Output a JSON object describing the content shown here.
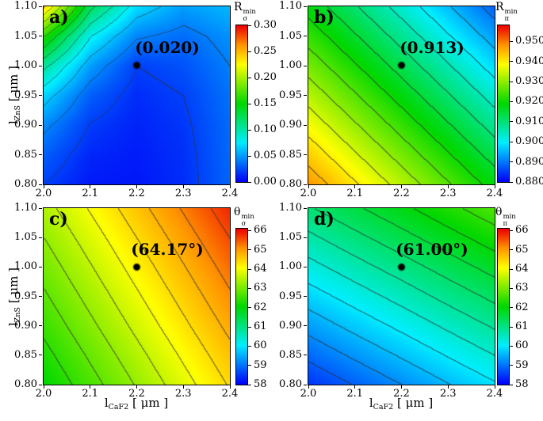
{
  "axes": {
    "x_label": {
      "base": "l",
      "sub": "CaF2",
      "unit": " [ μm ]",
      "text": "l_CaF2 [ μm ]"
    },
    "y_label": {
      "base": "l",
      "sub": "ZnS",
      "unit": " [ μm ]",
      "text": "l_ZnS [ μm ]"
    },
    "xlim": [
      2.0,
      2.4
    ],
    "ylim": [
      0.8,
      1.1
    ],
    "x_ticks": [
      {
        "value": 2.0,
        "label": "2.0"
      },
      {
        "value": 2.1,
        "label": "2.1"
      },
      {
        "value": 2.2,
        "label": "2.2"
      },
      {
        "value": 2.3,
        "label": "2.3"
      },
      {
        "value": 2.4,
        "label": "2.4"
      }
    ],
    "y_ticks": [
      {
        "value": 1.1,
        "label": "1.10"
      },
      {
        "value": 1.05,
        "label": "1.05"
      },
      {
        "value": 1.0,
        "label": "1.00"
      },
      {
        "value": 0.95,
        "label": "0.95"
      },
      {
        "value": 0.9,
        "label": "0.90"
      },
      {
        "value": 0.85,
        "label": "0.85"
      },
      {
        "value": 0.8,
        "label": "0.80"
      }
    ]
  },
  "chart_data": [
    {
      "id": "a",
      "type": "heatmap",
      "panel_label": "a)",
      "annotation": "(0.020)",
      "marker_point": {
        "x": 2.2,
        "y": 1.0,
        "value": 0.02
      },
      "xlim": [
        2.0,
        2.4
      ],
      "ylim": [
        0.8,
        1.1
      ],
      "x": [
        2.0,
        2.1,
        2.2,
        2.3,
        2.4
      ],
      "y": [
        1.1,
        1.05,
        1.0,
        0.95,
        0.9,
        0.85,
        0.8
      ],
      "values": [
        [
          0.24,
          0.125,
          0.07,
          0.05,
          0.058
        ],
        [
          0.16,
          0.08,
          0.042,
          0.034,
          0.046
        ],
        [
          0.105,
          0.05,
          0.02,
          0.026,
          0.04
        ],
        [
          0.068,
          0.03,
          0.014,
          0.02,
          0.036
        ],
        [
          0.044,
          0.019,
          0.011,
          0.017,
          0.034
        ],
        [
          0.03,
          0.012,
          0.009,
          0.015,
          0.033
        ],
        [
          0.02,
          0.008,
          0.007,
          0.014,
          0.032
        ]
      ],
      "contour_step": 0.02,
      "colorbar": {
        "base": "R",
        "sup": "min",
        "sub": "σ",
        "title": "R_sigma_min",
        "vmin": 0.0,
        "vmax": 0.3,
        "ticks": [
          {
            "value": 0.3,
            "label": "0.30"
          },
          {
            "value": 0.25,
            "label": "0.25"
          },
          {
            "value": 0.2,
            "label": "0.20"
          },
          {
            "value": 0.15,
            "label": "0.15"
          },
          {
            "value": 0.1,
            "label": "0.10"
          },
          {
            "value": 0.05,
            "label": "0.05"
          },
          {
            "value": 0.0,
            "label": "0.00"
          }
        ]
      }
    },
    {
      "id": "b",
      "type": "heatmap",
      "panel_label": "b)",
      "annotation": "(0.913)",
      "marker_point": {
        "x": 2.2,
        "y": 1.0,
        "value": 0.913
      },
      "xlim": [
        2.0,
        2.4
      ],
      "ylim": [
        0.8,
        1.1
      ],
      "x": [
        2.0,
        2.1,
        2.2,
        2.3,
        2.4
      ],
      "y": [
        1.1,
        1.05,
        1.0,
        0.95,
        0.9,
        0.85,
        0.8
      ],
      "values": [
        [
          0.918,
          0.9105,
          0.903,
          0.8955,
          0.888
        ],
        [
          0.923,
          0.9155,
          0.908,
          0.9005,
          0.893
        ],
        [
          0.928,
          0.9205,
          0.913,
          0.9055,
          0.898
        ],
        [
          0.933,
          0.9255,
          0.918,
          0.9105,
          0.903
        ],
        [
          0.938,
          0.9305,
          0.923,
          0.9155,
          0.908
        ],
        [
          0.943,
          0.9355,
          0.928,
          0.9205,
          0.913
        ],
        [
          0.948,
          0.9405,
          0.933,
          0.9255,
          0.918
        ]
      ],
      "contour_step": 0.005,
      "colorbar": {
        "base": "R",
        "sup": "min",
        "sub": "π",
        "title": "R_pi_min",
        "vmin": 0.88,
        "vmax": 0.958,
        "ticks": [
          {
            "value": 0.95,
            "label": "0.950"
          },
          {
            "value": 0.94,
            "label": "0.940"
          },
          {
            "value": 0.93,
            "label": "0.930"
          },
          {
            "value": 0.92,
            "label": "0.920"
          },
          {
            "value": 0.91,
            "label": "0.910"
          },
          {
            "value": 0.9,
            "label": "0.900"
          },
          {
            "value": 0.89,
            "label": "0.890"
          },
          {
            "value": 0.88,
            "label": "0.880"
          }
        ]
      }
    },
    {
      "id": "c",
      "type": "heatmap",
      "panel_label": "c)",
      "annotation": "(64.17°)",
      "marker_point": {
        "x": 2.2,
        "y": 1.0,
        "value": 64.17
      },
      "xlim": [
        2.0,
        2.4
      ],
      "ylim": [
        0.8,
        1.1
      ],
      "x": [
        2.0,
        2.1,
        2.2,
        2.3,
        2.4
      ],
      "y": [
        1.1,
        1.05,
        1.0,
        0.95,
        0.9,
        0.85,
        0.8
      ],
      "values": [
        [
          63.44,
          64.04,
          64.64,
          65.24,
          65.84
        ],
        [
          63.2,
          63.8,
          64.4,
          65.0,
          65.6
        ],
        [
          62.97,
          63.57,
          64.17,
          64.77,
          65.37
        ],
        [
          62.74,
          63.34,
          63.94,
          64.54,
          65.14
        ],
        [
          62.51,
          63.11,
          63.71,
          64.31,
          64.91
        ],
        [
          62.27,
          62.87,
          63.47,
          64.07,
          64.67
        ],
        [
          62.04,
          62.64,
          63.24,
          63.84,
          64.44
        ]
      ],
      "contour_step": 0.4,
      "colorbar": {
        "base": "θ",
        "sup": "min",
        "sub": "σ",
        "title": "theta_sigma_min",
        "vmin": 58,
        "vmax": 66.1,
        "ticks": [
          {
            "value": 66,
            "label": "66"
          },
          {
            "value": 65,
            "label": "65"
          },
          {
            "value": 64,
            "label": "64"
          },
          {
            "value": 63,
            "label": "63"
          },
          {
            "value": 62,
            "label": "62"
          },
          {
            "value": 61,
            "label": "61"
          },
          {
            "value": 60,
            "label": "60"
          },
          {
            "value": 59,
            "label": "59"
          },
          {
            "value": 58,
            "label": "58"
          }
        ]
      }
    },
    {
      "id": "d",
      "type": "heatmap",
      "panel_label": "d)",
      "annotation": "(61.00°)",
      "marker_point": {
        "x": 2.2,
        "y": 1.0,
        "value": 61.0
      },
      "xlim": [
        2.0,
        2.4
      ],
      "ylim": [
        0.8,
        1.1
      ],
      "x": [
        2.0,
        2.1,
        2.2,
        2.3,
        2.4
      ],
      "y": [
        1.1,
        1.05,
        1.0,
        0.95,
        0.9,
        0.85,
        0.8
      ],
      "values": [
        [
          61.15,
          61.53,
          61.9,
          62.28,
          62.65
        ],
        [
          60.7,
          61.08,
          61.45,
          61.83,
          62.2
        ],
        [
          60.25,
          60.63,
          61.0,
          61.38,
          61.75
        ],
        [
          59.8,
          60.18,
          60.55,
          60.93,
          61.3
        ],
        [
          59.35,
          59.73,
          60.1,
          60.48,
          60.85
        ],
        [
          58.9,
          59.28,
          59.65,
          60.03,
          60.4
        ],
        [
          58.45,
          58.83,
          59.2,
          59.58,
          59.95
        ]
      ],
      "contour_step": 0.4,
      "colorbar": {
        "base": "θ",
        "sup": "min",
        "sub": "π",
        "title": "theta_pi_min",
        "vmin": 58,
        "vmax": 66.1,
        "ticks": [
          {
            "value": 66,
            "label": "66"
          },
          {
            "value": 65,
            "label": "65"
          },
          {
            "value": 64,
            "label": "64"
          },
          {
            "value": 63,
            "label": "63"
          },
          {
            "value": 62,
            "label": "62"
          },
          {
            "value": 61,
            "label": "61"
          },
          {
            "value": 60,
            "label": "60"
          },
          {
            "value": 59,
            "label": "59"
          },
          {
            "value": 58,
            "label": "58"
          }
        ]
      }
    }
  ]
}
